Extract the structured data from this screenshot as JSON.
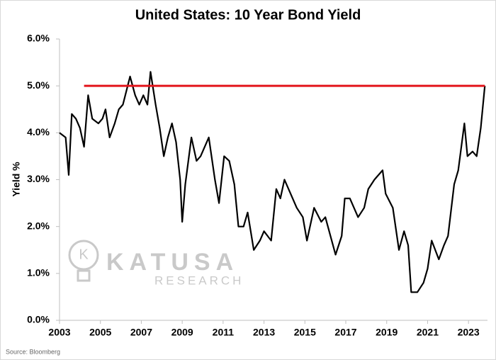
{
  "chart_data": {
    "type": "line",
    "title": "United States: 10 Year Bond Yield",
    "y_label": "Yield %",
    "source": "Source: Bloomberg",
    "watermark": {
      "icon": "K",
      "name": "KATUSA",
      "sub": "RESEARCH"
    },
    "xlim": [
      2003,
      2023.93
    ],
    "ylim": [
      0,
      6
    ],
    "xticks": [
      2003,
      2005,
      2007,
      2009,
      2011,
      2013,
      2015,
      2017,
      2019,
      2021,
      2023
    ],
    "yticks": [
      {
        "value": 0,
        "label": "0.0%"
      },
      {
        "value": 1,
        "label": "1.0%"
      },
      {
        "value": 2,
        "label": "2.0%"
      },
      {
        "value": 3,
        "label": "3.0%"
      },
      {
        "value": 4,
        "label": "4.0%"
      },
      {
        "value": 5,
        "label": "5.0%"
      },
      {
        "value": 6,
        "label": "6.0%"
      }
    ],
    "series": [
      {
        "color": "#000000",
        "x": [
          2003.0,
          2003.3,
          2003.45,
          2003.6,
          2003.8,
          2004.0,
          2004.2,
          2004.4,
          2004.6,
          2004.9,
          2005.1,
          2005.25,
          2005.45,
          2005.7,
          2005.9,
          2006.1,
          2006.45,
          2006.7,
          2006.9,
          2007.1,
          2007.3,
          2007.45,
          2007.7,
          2007.9,
          2008.1,
          2008.3,
          2008.5,
          2008.7,
          2008.9,
          2009.0,
          2009.15,
          2009.45,
          2009.7,
          2009.9,
          2010.3,
          2010.6,
          2010.8,
          2011.05,
          2011.3,
          2011.55,
          2011.75,
          2012.0,
          2012.2,
          2012.5,
          2012.8,
          2013.0,
          2013.35,
          2013.6,
          2013.8,
          2014.0,
          2014.3,
          2014.6,
          2014.9,
          2015.1,
          2015.45,
          2015.8,
          2016.0,
          2016.5,
          2016.8,
          2016.95,
          2017.2,
          2017.6,
          2017.9,
          2018.1,
          2018.4,
          2018.8,
          2018.95,
          2019.3,
          2019.6,
          2019.85,
          2020.05,
          2020.2,
          2020.5,
          2020.8,
          2021.0,
          2021.2,
          2021.55,
          2021.8,
          2022.0,
          2022.3,
          2022.5,
          2022.8,
          2022.95,
          2023.2,
          2023.4,
          2023.6,
          2023.8
        ],
        "values": [
          4.0,
          3.9,
          3.1,
          4.4,
          4.3,
          4.1,
          3.7,
          4.8,
          4.3,
          4.2,
          4.3,
          4.5,
          3.9,
          4.2,
          4.5,
          4.6,
          5.2,
          4.8,
          4.6,
          4.8,
          4.6,
          5.3,
          4.6,
          4.1,
          3.5,
          3.9,
          4.2,
          3.8,
          3.0,
          2.1,
          2.9,
          3.9,
          3.4,
          3.5,
          3.9,
          3.0,
          2.5,
          3.5,
          3.4,
          2.9,
          2.0,
          2.0,
          2.3,
          1.5,
          1.7,
          1.9,
          1.7,
          2.8,
          2.6,
          3.0,
          2.7,
          2.4,
          2.2,
          1.7,
          2.4,
          2.1,
          2.2,
          1.4,
          1.8,
          2.6,
          2.6,
          2.2,
          2.4,
          2.8,
          3.0,
          3.2,
          2.7,
          2.4,
          1.5,
          1.9,
          1.6,
          0.6,
          0.6,
          0.8,
          1.1,
          1.7,
          1.3,
          1.6,
          1.8,
          2.9,
          3.2,
          4.2,
          3.5,
          3.6,
          3.5,
          4.1,
          5.0
        ]
      }
    ],
    "reference_line": {
      "y": 5,
      "x": [
        2004.2,
        2023.8
      ],
      "color": "#e3141b"
    }
  }
}
